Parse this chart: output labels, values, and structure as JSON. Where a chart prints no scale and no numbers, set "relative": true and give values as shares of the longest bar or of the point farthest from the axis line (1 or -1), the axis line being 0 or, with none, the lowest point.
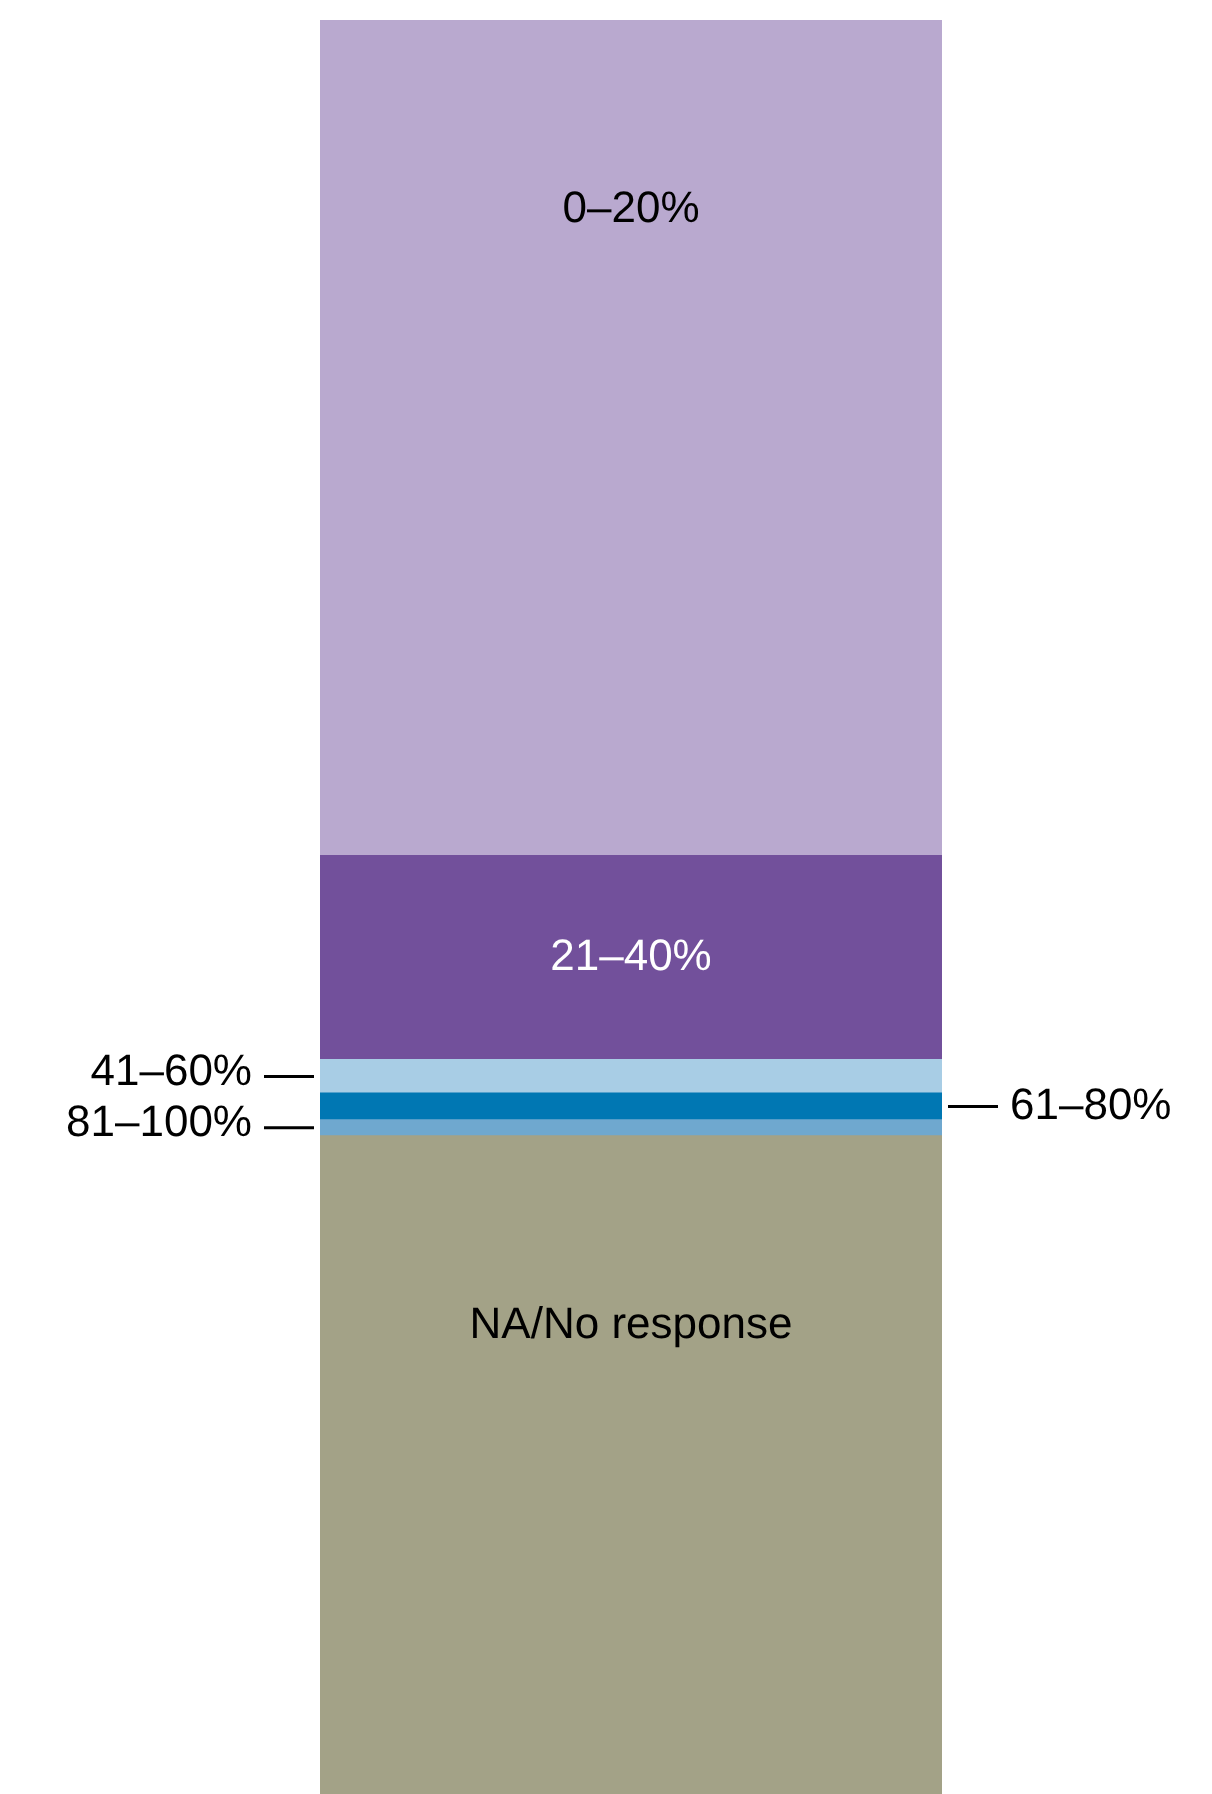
{
  "chart_data": {
    "type": "bar",
    "stacked": true,
    "relative": true,
    "legend": false,
    "categories": [
      null
    ],
    "series": [
      {
        "name": "NA/No response",
        "color": "#a3a287",
        "values": [
          0.371
        ]
      },
      {
        "name": "81–100%",
        "color": "#6fa8cf",
        "values": [
          0.009
        ]
      },
      {
        "name": "61–80%",
        "color": "#0077b3",
        "values": [
          0.015
        ]
      },
      {
        "name": "41–60%",
        "color": "#a8cde5",
        "values": [
          0.019
        ]
      },
      {
        "name": "21–40%",
        "color": "#72509b",
        "values": [
          0.115
        ]
      },
      {
        "name": "0–20%",
        "color": "#b9a9cf",
        "values": [
          0.471
        ]
      }
    ]
  }
}
